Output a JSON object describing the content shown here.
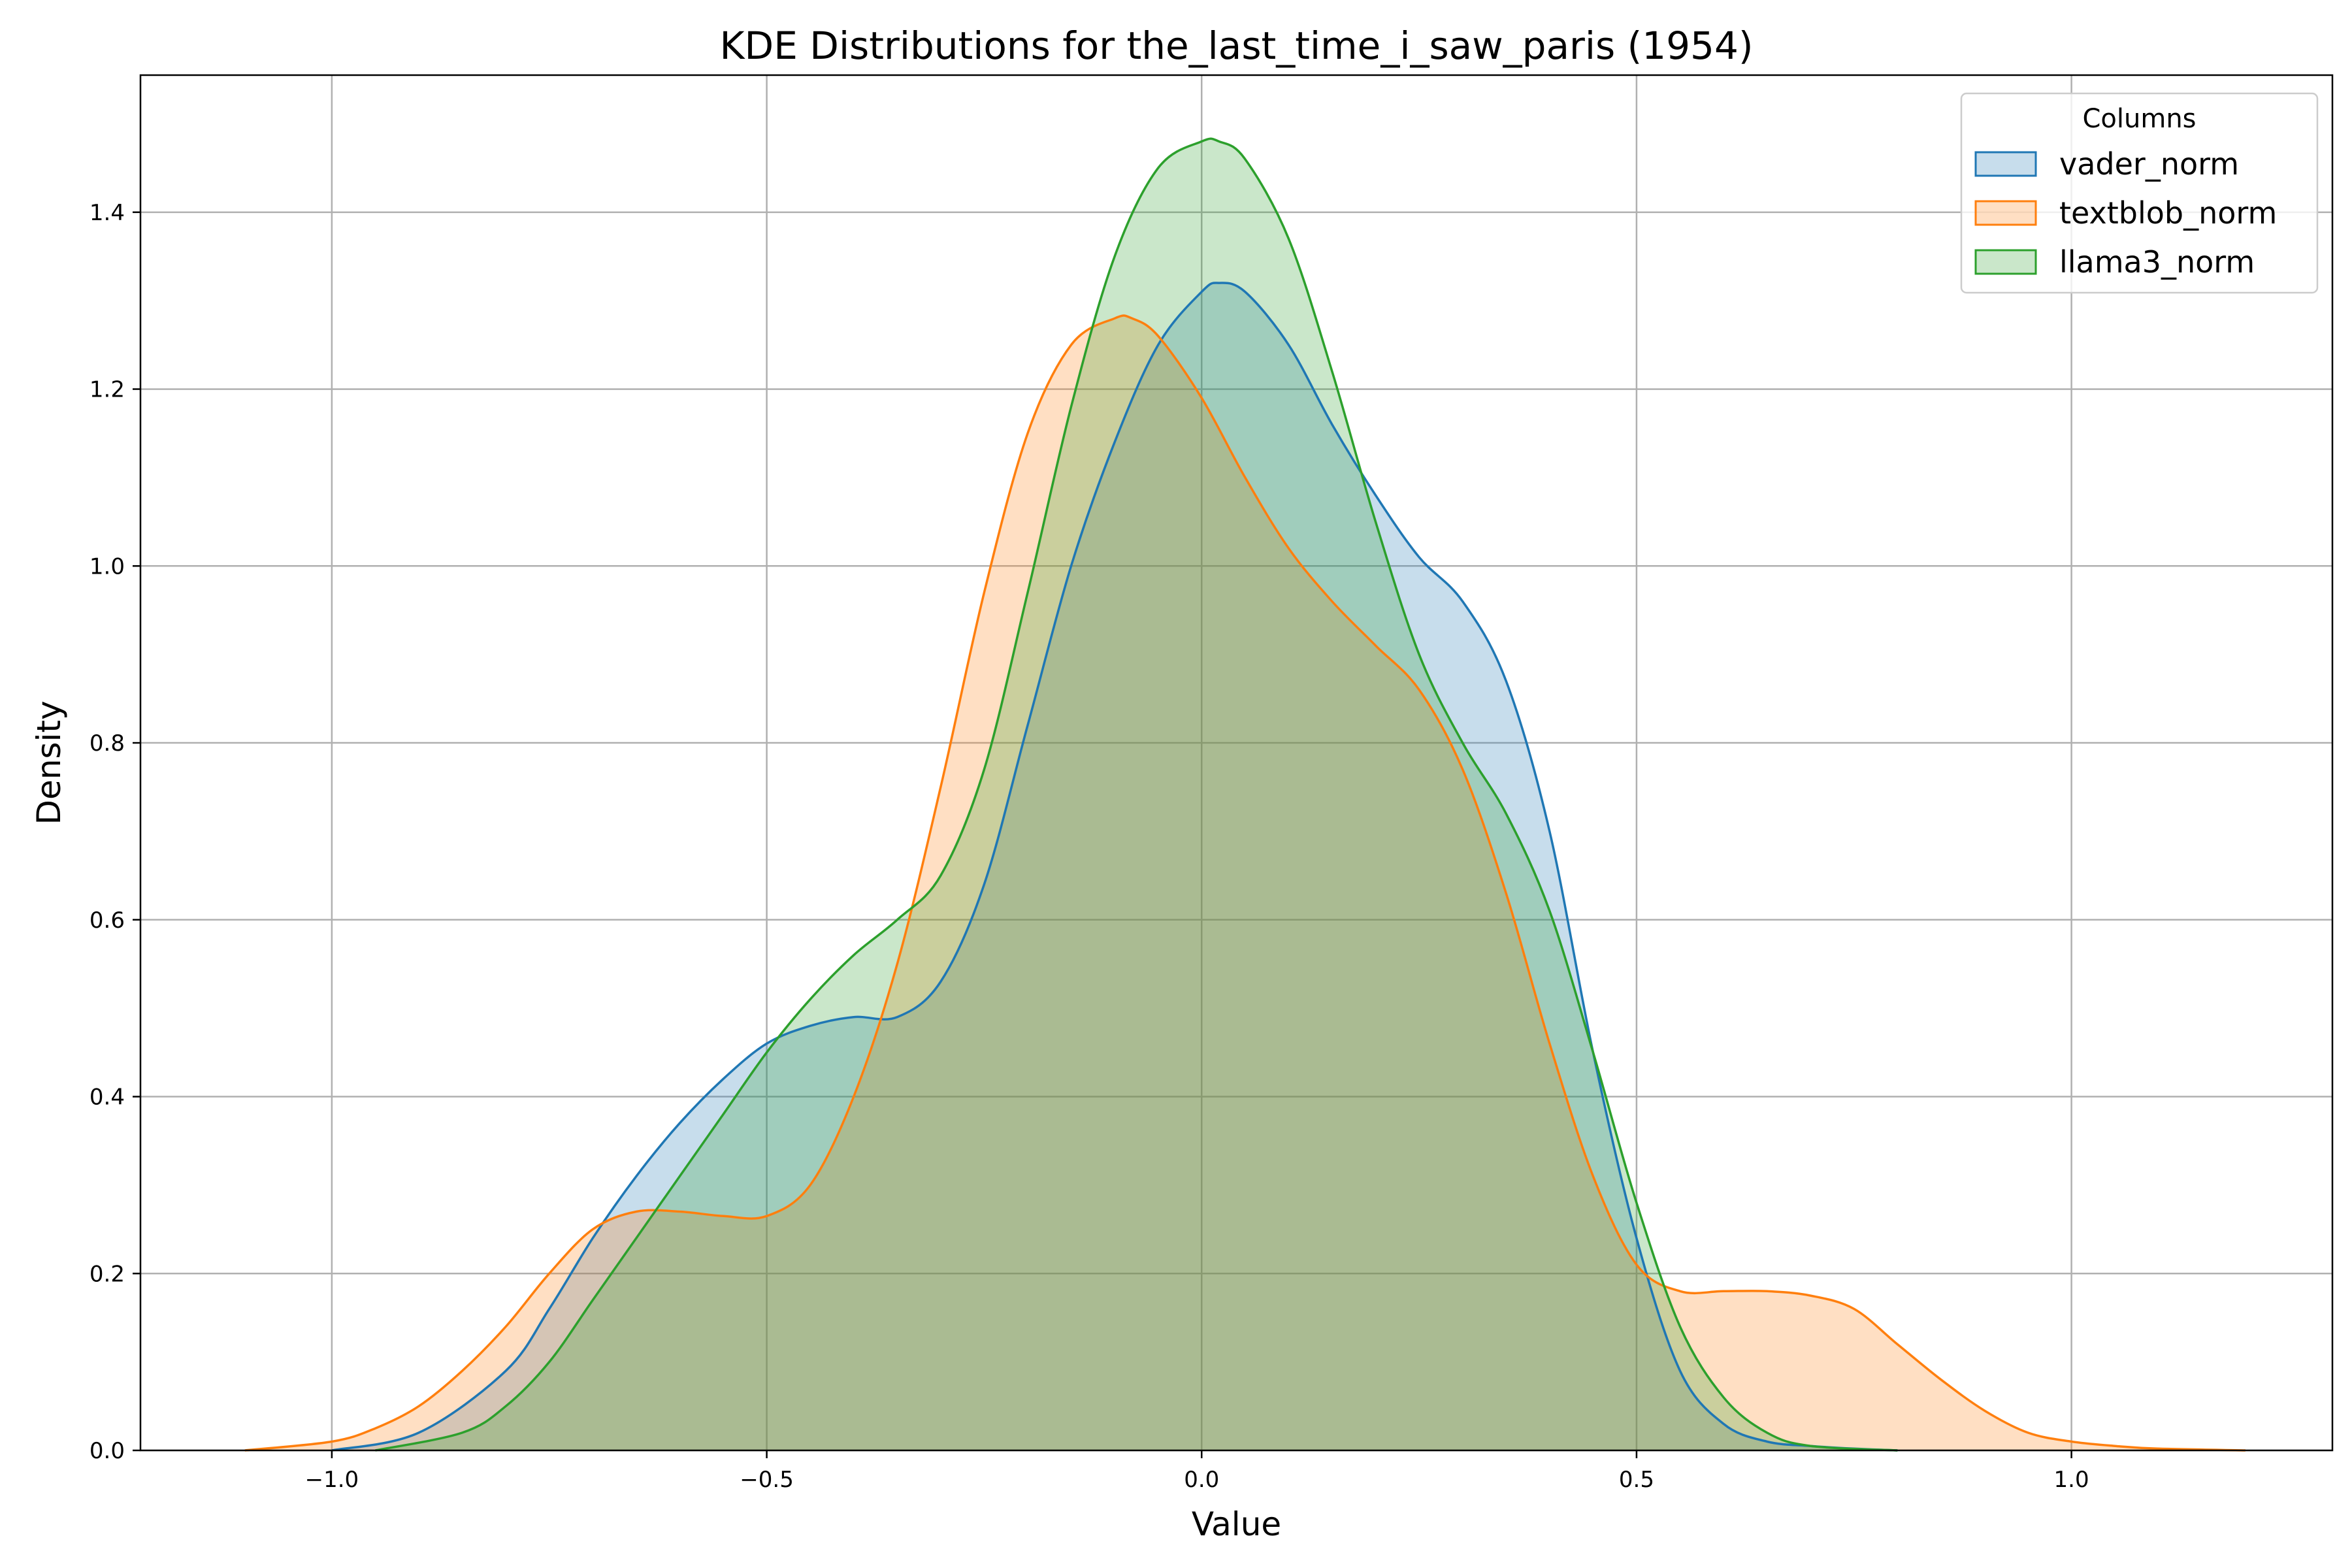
{
  "chart_data": {
    "type": "area",
    "title": "KDE Distributions for the_last_time_i_saw_paris (1954)",
    "xlabel": "Value",
    "ylabel": "Density",
    "xlim": [
      -1.22,
      1.3
    ],
    "ylim": [
      0,
      1.555
    ],
    "xticks": [
      -1.0,
      -0.5,
      0.0,
      0.5,
      1.0
    ],
    "xtick_labels": [
      "−1.0",
      "−0.5",
      "0.0",
      "0.5",
      "1.0"
    ],
    "yticks": [
      0.0,
      0.2,
      0.4,
      0.6,
      0.8,
      1.0,
      1.2,
      1.4
    ],
    "ytick_labels": [
      "0.0",
      "0.2",
      "0.4",
      "0.6",
      "0.8",
      "1.0",
      "1.2",
      "1.4"
    ],
    "grid": true,
    "legend": {
      "title": "Columns",
      "placement": "top-right"
    },
    "series": [
      {
        "name": "vader_norm",
        "color": "#1f77b4",
        "x": [
          -1.0,
          -0.9,
          -0.8,
          -0.75,
          -0.7,
          -0.65,
          -0.6,
          -0.55,
          -0.5,
          -0.45,
          -0.4,
          -0.35,
          -0.3,
          -0.25,
          -0.2,
          -0.15,
          -0.1,
          -0.05,
          0.0,
          0.02,
          0.05,
          0.1,
          0.15,
          0.2,
          0.25,
          0.3,
          0.35,
          0.4,
          0.45,
          0.5,
          0.55,
          0.6,
          0.65,
          0.7,
          0.75,
          0.8
        ],
        "y": [
          0.0,
          0.02,
          0.09,
          0.16,
          0.24,
          0.31,
          0.37,
          0.42,
          0.46,
          0.48,
          0.49,
          0.49,
          0.53,
          0.64,
          0.82,
          1.0,
          1.14,
          1.25,
          1.31,
          1.32,
          1.31,
          1.25,
          1.16,
          1.08,
          1.01,
          0.96,
          0.87,
          0.7,
          0.45,
          0.24,
          0.09,
          0.03,
          0.01,
          0.005,
          0.002,
          0.0
        ]
      },
      {
        "name": "textblob_norm",
        "color": "#ff7f0e",
        "x": [
          -1.1,
          -1.0,
          -0.95,
          -0.9,
          -0.85,
          -0.8,
          -0.75,
          -0.7,
          -0.65,
          -0.6,
          -0.55,
          -0.5,
          -0.45,
          -0.4,
          -0.35,
          -0.3,
          -0.25,
          -0.2,
          -0.15,
          -0.1,
          -0.08,
          -0.05,
          0.0,
          0.05,
          0.1,
          0.15,
          0.2,
          0.25,
          0.3,
          0.35,
          0.4,
          0.45,
          0.5,
          0.55,
          0.6,
          0.65,
          0.7,
          0.75,
          0.8,
          0.85,
          0.9,
          0.95,
          1.0,
          1.05,
          1.1,
          1.2
        ],
        "y": [
          0.0,
          0.01,
          0.025,
          0.05,
          0.09,
          0.14,
          0.2,
          0.25,
          0.27,
          0.27,
          0.265,
          0.265,
          0.3,
          0.4,
          0.55,
          0.75,
          0.97,
          1.15,
          1.25,
          1.28,
          1.28,
          1.26,
          1.19,
          1.1,
          1.02,
          0.96,
          0.91,
          0.86,
          0.77,
          0.63,
          0.46,
          0.31,
          0.21,
          0.18,
          0.18,
          0.18,
          0.175,
          0.16,
          0.12,
          0.08,
          0.045,
          0.02,
          0.01,
          0.005,
          0.002,
          0.0
        ]
      },
      {
        "name": "llama3_norm",
        "color": "#2ca02c",
        "x": [
          -0.95,
          -0.85,
          -0.8,
          -0.75,
          -0.7,
          -0.65,
          -0.6,
          -0.55,
          -0.5,
          -0.45,
          -0.4,
          -0.35,
          -0.3,
          -0.25,
          -0.2,
          -0.15,
          -0.1,
          -0.05,
          0.0,
          0.02,
          0.05,
          0.1,
          0.15,
          0.2,
          0.25,
          0.3,
          0.35,
          0.4,
          0.45,
          0.5,
          0.55,
          0.6,
          0.65,
          0.7,
          0.8
        ],
        "y": [
          0.0,
          0.02,
          0.05,
          0.1,
          0.17,
          0.24,
          0.31,
          0.38,
          0.45,
          0.51,
          0.56,
          0.6,
          0.65,
          0.77,
          0.97,
          1.18,
          1.35,
          1.45,
          1.48,
          1.48,
          1.46,
          1.37,
          1.22,
          1.05,
          0.9,
          0.8,
          0.72,
          0.61,
          0.45,
          0.28,
          0.14,
          0.06,
          0.02,
          0.005,
          0.0
        ]
      }
    ]
  }
}
